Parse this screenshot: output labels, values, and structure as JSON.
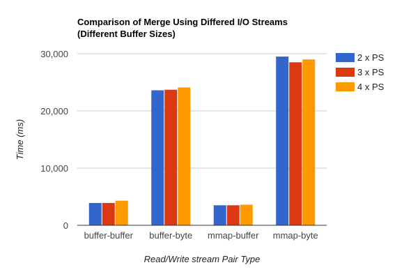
{
  "chart_data": {
    "type": "bar",
    "title_line1": "Comparison of Merge Using Differed I/O Streams",
    "title_line2": "(Different Buffer Sizes)",
    "xlabel": "Read/Write stream Pair Type",
    "ylabel": "Time (ms)",
    "ylim": [
      0,
      30000
    ],
    "yticks": [
      "0",
      "10,000",
      "20,000",
      "30,000"
    ],
    "ytick_values": [
      0,
      10000,
      20000,
      30000
    ],
    "grid": true,
    "legend_position": "right",
    "categories": [
      "buffer-buffer",
      "buffer-byte",
      "mmap-buffer",
      "mmap-byte"
    ],
    "series": [
      {
        "name": "2 x PS",
        "color": "#3366cc",
        "values": [
          3900,
          23600,
          3500,
          29500
        ]
      },
      {
        "name": "3 x PS",
        "color": "#dc3912",
        "values": [
          3900,
          23700,
          3500,
          28500
        ]
      },
      {
        "name": "4 x PS",
        "color": "#ff9900",
        "values": [
          4300,
          24100,
          3600,
          29000
        ]
      }
    ]
  }
}
